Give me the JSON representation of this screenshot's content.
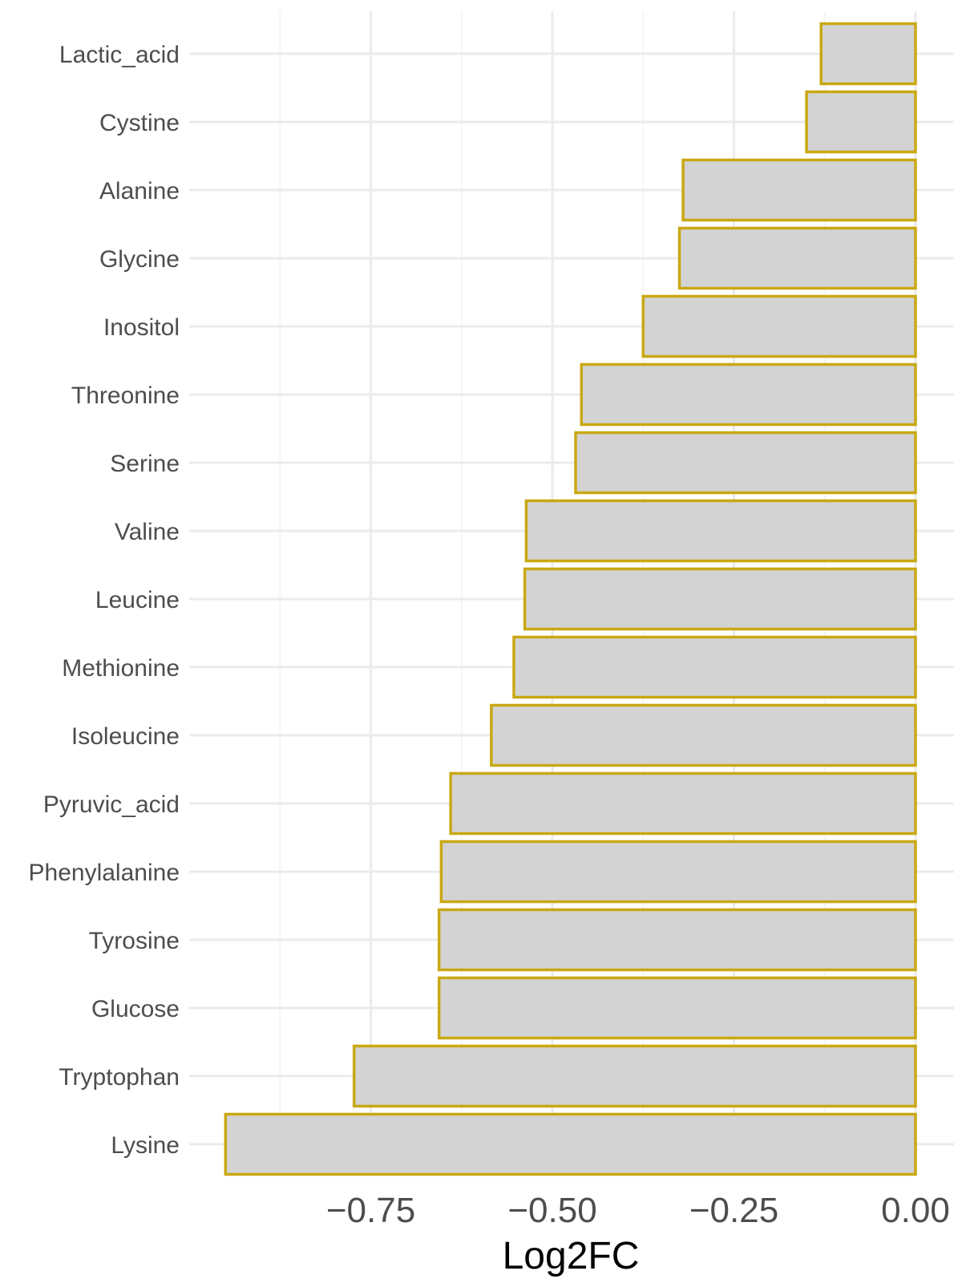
{
  "chart_data": {
    "type": "bar",
    "orientation": "horizontal",
    "categories": [
      "Lactic_acid",
      "Cystine",
      "Alanine",
      "Glycine",
      "Inositol",
      "Threonine",
      "Serine",
      "Valine",
      "Leucine",
      "Methionine",
      "Isoleucine",
      "Pyruvic_acid",
      "Phenylalanine",
      "Tyrosine",
      "Glucose",
      "Tryptophan",
      "Lysine"
    ],
    "values": [
      -0.13,
      -0.15,
      -0.32,
      -0.325,
      -0.375,
      -0.46,
      -0.468,
      -0.536,
      -0.538,
      -0.553,
      -0.584,
      -0.64,
      -0.653,
      -0.656,
      -0.656,
      -0.773,
      -0.95
    ],
    "title": "",
    "xlabel": "Log2FC",
    "ylabel": "",
    "xlim": [
      -0.952,
      0.005
    ],
    "x_ticks": [
      -0.75,
      -0.5,
      -0.25,
      0.0
    ],
    "x_tick_labels": [
      "−0.75",
      "−0.50",
      "−0.25",
      "0.00"
    ],
    "grid": true,
    "legend": "none",
    "colors": {
      "bar_fill": "#d3d3d3",
      "bar_stroke": "#c9a813",
      "grid_major": "#ebebeb",
      "grid_minor": "#f3f3f3",
      "tick_text": "#4d4d4d",
      "axis_title": "#000000"
    }
  }
}
